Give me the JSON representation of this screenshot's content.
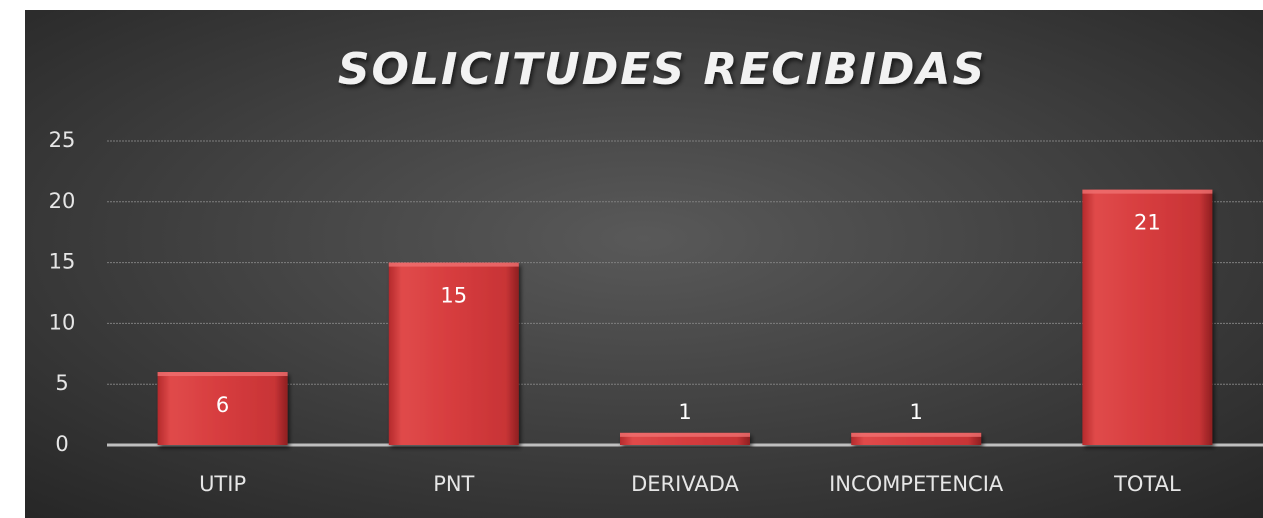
{
  "chart_data": {
    "type": "bar",
    "title": "SOLICITUDES RECIBIDAS",
    "categories": [
      "UTIP",
      "PNT",
      "DERIVADA",
      "INCOMPETENCIA",
      "TOTAL"
    ],
    "values": [
      6,
      15,
      1,
      1,
      21
    ],
    "color": "#d63c3e",
    "ylim": [
      0,
      25
    ],
    "yticks": [
      0,
      5,
      10,
      15,
      20,
      25
    ],
    "grid": true
  }
}
